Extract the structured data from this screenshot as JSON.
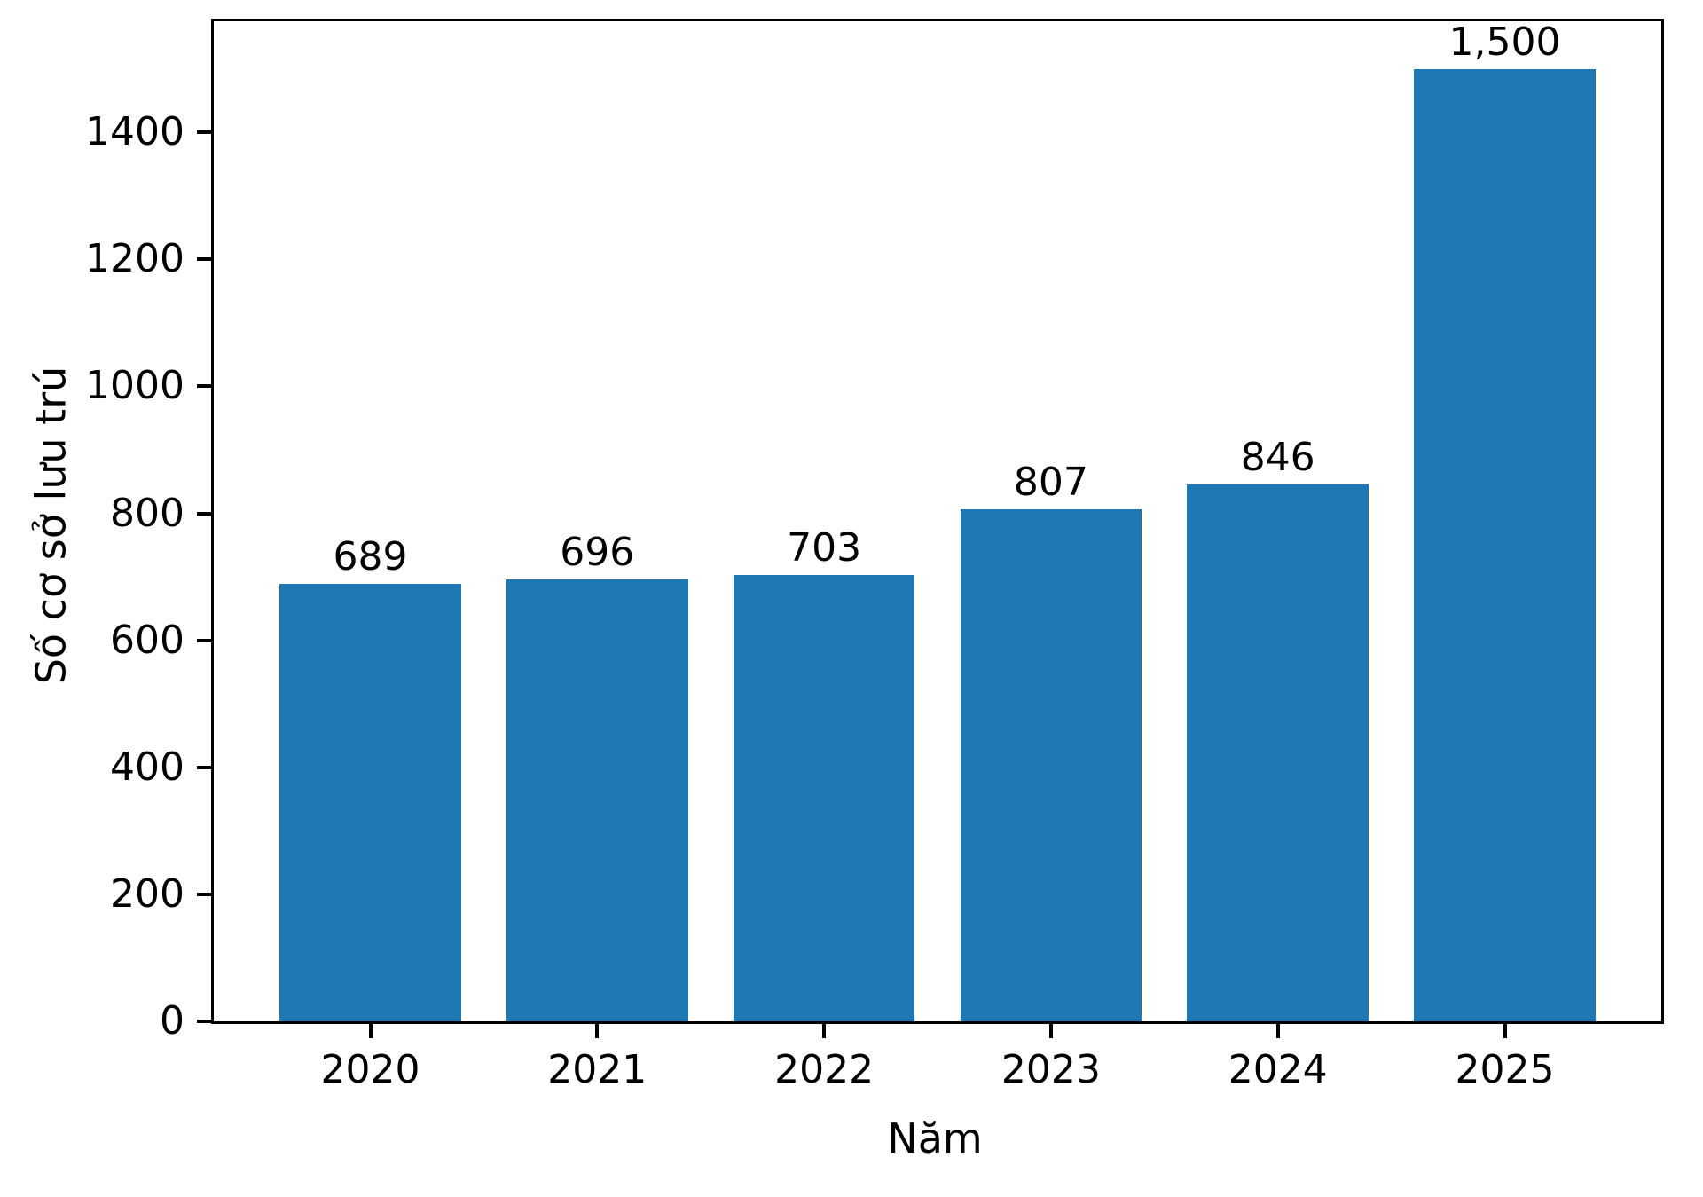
{
  "chart_data": {
    "type": "bar",
    "title": "",
    "xlabel": "Năm",
    "ylabel": "Số cơ sở lưu trú",
    "categories": [
      "2020",
      "2021",
      "2022",
      "2023",
      "2024",
      "2025"
    ],
    "values": [
      689,
      696,
      703,
      807,
      846,
      1500
    ],
    "bar_value_labels": [
      "689",
      "696",
      "703",
      "807",
      "846",
      "1,500"
    ],
    "yticks": [
      0,
      200,
      400,
      600,
      800,
      1000,
      1200,
      1400
    ],
    "ytick_labels": [
      "0",
      "200",
      "400",
      "600",
      "800",
      "1000",
      "1200",
      "1400"
    ],
    "ylim": [
      0,
      1575
    ],
    "xlim": [
      -0.69,
      5.69
    ],
    "bar_width_frac": 0.8,
    "bar_color": "#1f77b4",
    "axis_color": "#000000",
    "text_color": "#000000",
    "grid": false,
    "legend": "none"
  }
}
